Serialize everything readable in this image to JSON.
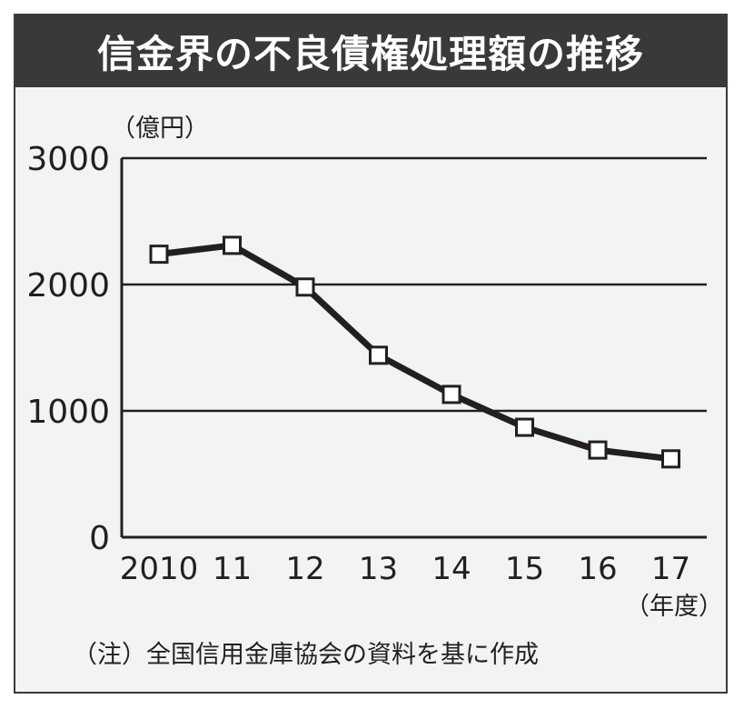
{
  "title": "信金界の不良債権処理額の推移",
  "note": "（注）全国信用金庫協会の資料を基に作成",
  "chart_data": {
    "type": "line",
    "title": "信金界の不良債権処理額の推移",
    "ylabel": "（億円）",
    "xlabel": "（年度）",
    "categories": [
      "2010",
      "11",
      "12",
      "13",
      "14",
      "15",
      "16",
      "17"
    ],
    "series": [
      {
        "values": [
          2240,
          2310,
          1980,
          1440,
          1130,
          870,
          690,
          620
        ]
      }
    ],
    "ylim": [
      0,
      3000
    ],
    "yticks": [
      "0",
      "1000",
      "2000",
      "3000"
    ],
    "grid": true,
    "marker": "square",
    "line_color": "#231f20",
    "marker_fill": "#ffffff"
  }
}
